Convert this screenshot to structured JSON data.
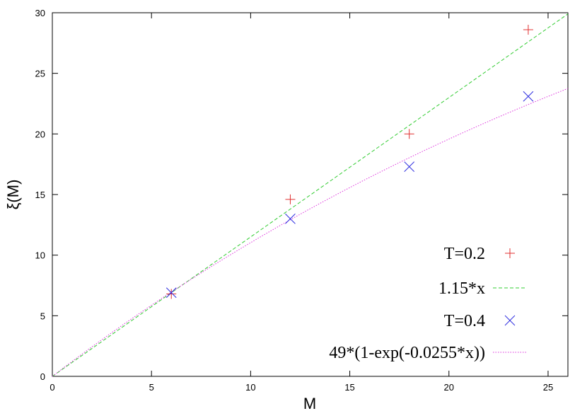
{
  "chart_data": {
    "type": "scatter",
    "xlabel": "M",
    "ylabel": "ξ(M)",
    "xlim": [
      0,
      26
    ],
    "ylim": [
      0,
      30
    ],
    "xticks": [
      0,
      5,
      10,
      15,
      20,
      25
    ],
    "yticks": [
      0,
      5,
      10,
      15,
      20,
      25,
      30
    ],
    "legend_position": "bottom-right",
    "grid": false,
    "series": [
      {
        "name": "T=0.2",
        "kind": "points",
        "marker": "plus",
        "color": "#e03030",
        "x": [
          6,
          12,
          18,
          24
        ],
        "y": [
          6.8,
          14.6,
          20.0,
          28.6
        ]
      },
      {
        "name": "1.15*x",
        "kind": "function",
        "expression": "1.15*x",
        "color": "#33cc33",
        "dash": "dashed"
      },
      {
        "name": "T=0.4",
        "kind": "points",
        "marker": "cross",
        "color": "#3030e0",
        "x": [
          6,
          12,
          18,
          24
        ],
        "y": [
          6.9,
          13.0,
          17.3,
          23.1
        ]
      },
      {
        "name": "49*(1-exp(-0.0255*x))",
        "kind": "function",
        "expression": "49*(1-exp(-0.0255*x))",
        "color": "#dd33dd",
        "dash": "dotted"
      }
    ]
  }
}
